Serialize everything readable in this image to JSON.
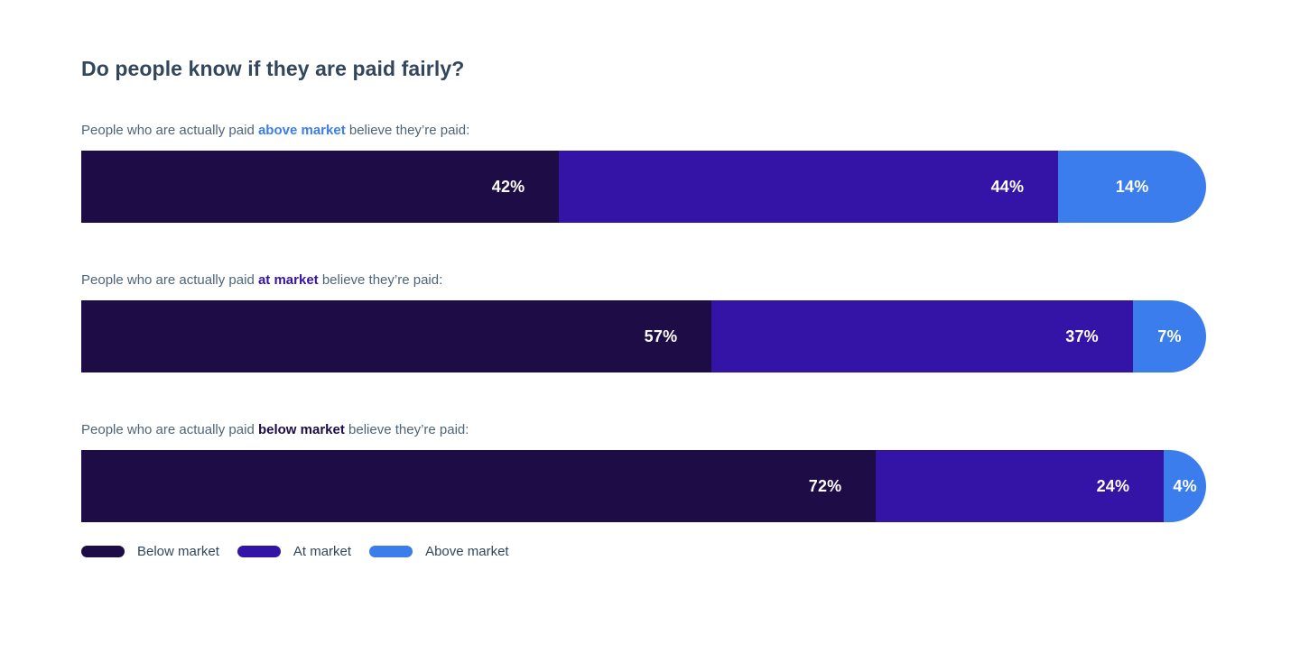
{
  "title": "Do people know if they are paid fairly?",
  "colors": {
    "below_market": "#1e0c46",
    "at_market": "#3413a7",
    "above_market": "#3b7dec",
    "title_text": "#33475c",
    "label_text": "#4c657a",
    "value_text": "#ffffff"
  },
  "chart_data": {
    "type": "bar",
    "variant": "horizontal-stacked",
    "title": "Do people know if they are paid fairly?",
    "categories": [
      "Below market",
      "At market",
      "Above market"
    ],
    "value_suffix": "%",
    "legend_position": "bottom",
    "grid": false,
    "rows": [
      {
        "label": {
          "prefix": "People who are actually paid ",
          "highlight": "above market",
          "suffix": " believe they’re paid:",
          "highlight_color": "#3b7dec"
        },
        "segments": [
          {
            "name": "Below market",
            "value": 42
          },
          {
            "name": "At market",
            "value": 44
          },
          {
            "name": "Above market",
            "value": 14
          }
        ]
      },
      {
        "label": {
          "prefix": "People who are actually paid ",
          "highlight": "at market",
          "suffix": " believe they’re paid:",
          "highlight_color": "#3413a7"
        },
        "segments": [
          {
            "name": "Below market",
            "value": 57
          },
          {
            "name": "At market",
            "value": 37
          },
          {
            "name": "Above market",
            "value": 7
          }
        ]
      },
      {
        "label": {
          "prefix": "People who are actually paid ",
          "highlight": "below market",
          "suffix": " believe they’re paid:",
          "highlight_color": "#1e0c46"
        },
        "segments": [
          {
            "name": "Below market",
            "value": 72
          },
          {
            "name": "At market",
            "value": 24
          },
          {
            "name": "Above market",
            "value": 4
          }
        ]
      }
    ],
    "legend": [
      {
        "label": "Below market",
        "color": "#1e0c46"
      },
      {
        "label": "At market",
        "color": "#3413a7"
      },
      {
        "label": "Above market",
        "color": "#3b7dec"
      }
    ]
  }
}
